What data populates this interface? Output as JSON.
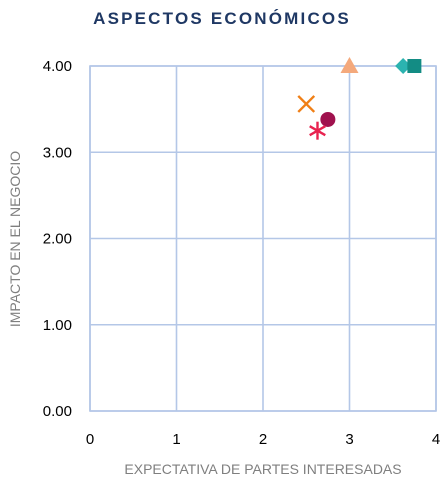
{
  "chart_data": {
    "type": "scatter",
    "title": "ASPECTOS ECONÓMICOS",
    "xlabel": "EXPECTATIVA DE PARTES INTERESADAS",
    "ylabel": "IMPACTO EN EL NEGOCIO",
    "xlim": [
      0,
      4
    ],
    "ylim": [
      0,
      4
    ],
    "x_ticks": [
      "0",
      "1",
      "2",
      "3",
      "4"
    ],
    "y_ticks": [
      "0.00",
      "1.00",
      "2.00",
      "3.00",
      "4.00"
    ],
    "grid": true,
    "legend": "none",
    "series": [
      {
        "marker": "diamond",
        "color": "#2bb3b0",
        "points": [
          {
            "x": 3.62,
            "y": 4.0
          }
        ]
      },
      {
        "marker": "square",
        "color": "#138c84",
        "points": [
          {
            "x": 3.75,
            "y": 4.0
          }
        ]
      },
      {
        "marker": "triangle",
        "color": "#f4a97c",
        "points": [
          {
            "x": 3.0,
            "y": 4.0
          }
        ]
      },
      {
        "marker": "x",
        "color": "#f07f16",
        "points": [
          {
            "x": 2.5,
            "y": 3.56
          }
        ]
      },
      {
        "marker": "circle",
        "color": "#a0124e",
        "points": [
          {
            "x": 2.75,
            "y": 3.38
          }
        ]
      },
      {
        "marker": "star",
        "color": "#e8224f",
        "points": [
          {
            "x": 2.63,
            "y": 3.25
          }
        ]
      }
    ]
  }
}
